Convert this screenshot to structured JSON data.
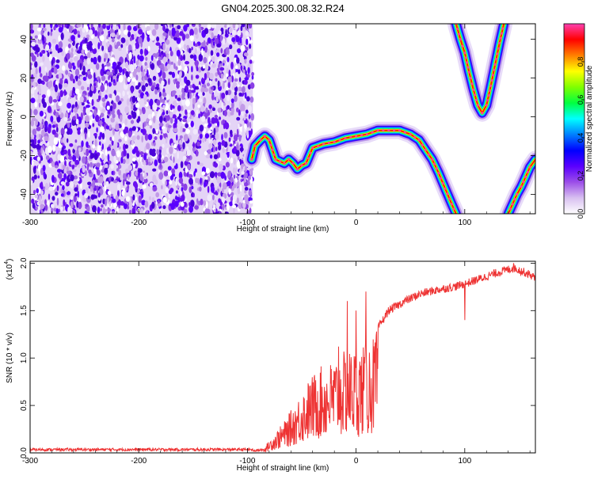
{
  "title": "GN04.2025.300.08.32.R24",
  "chart_data": [
    {
      "type": "heatmap",
      "title": "GN04.2025.300.08.32.R24",
      "xlabel": "Height of straight line (km)",
      "ylabel": "Frequency (Hz)",
      "xlim": [
        -300,
        165
      ],
      "ylim": [
        -50,
        48
      ],
      "xticks": [
        -300,
        -200,
        -100,
        0,
        100
      ],
      "xtick_labels": [
        "-300",
        "-200",
        "-100",
        "0",
        "100"
      ],
      "yticks": [
        -40,
        -20,
        0,
        20,
        40
      ],
      "ytick_labels": [
        "-40",
        "-20",
        "0",
        "20",
        "40"
      ],
      "noise_region": {
        "x": [
          -300,
          -95
        ],
        "description": "random purple speckle"
      },
      "tracks": [
        {
          "name": "main-ridge",
          "points": [
            [
              -96,
              -22
            ],
            [
              -93,
              -15
            ],
            [
              -88,
              -12
            ],
            [
              -84,
              -10
            ],
            [
              -80,
              -12
            ],
            [
              -77,
              -17
            ],
            [
              -74,
              -22
            ],
            [
              -70,
              -23
            ],
            [
              -66,
              -24
            ],
            [
              -62,
              -22
            ],
            [
              -58,
              -24
            ],
            [
              -54,
              -27
            ],
            [
              -50,
              -25
            ],
            [
              -46,
              -24
            ],
            [
              -40,
              -16
            ],
            [
              -30,
              -14
            ],
            [
              -20,
              -13
            ],
            [
              -10,
              -11
            ],
            [
              0,
              -10
            ],
            [
              10,
              -9
            ],
            [
              20,
              -7
            ],
            [
              30,
              -7
            ],
            [
              40,
              -7
            ],
            [
              50,
              -9
            ],
            [
              58,
              -12
            ],
            [
              64,
              -17
            ],
            [
              70,
              -22
            ],
            [
              76,
              -29
            ],
            [
              82,
              -37
            ],
            [
              88,
              -45
            ],
            [
              92,
              -50
            ]
          ]
        },
        {
          "name": "upper-vee",
          "points": [
            [
              92,
              48
            ],
            [
              96,
              40
            ],
            [
              100,
              33
            ],
            [
              104,
              23
            ],
            [
              108,
              14
            ],
            [
              112,
              6
            ],
            [
              116,
              2
            ],
            [
              120,
              6
            ],
            [
              124,
              16
            ],
            [
              128,
              27
            ],
            [
              132,
              38
            ],
            [
              136,
              48
            ]
          ]
        },
        {
          "name": "lower-right",
          "points": [
            [
              140,
              -50
            ],
            [
              144,
              -45
            ],
            [
              148,
              -40
            ],
            [
              152,
              -36
            ],
            [
              156,
              -31
            ],
            [
              160,
              -26
            ],
            [
              165,
              -22
            ]
          ]
        }
      ],
      "colorbar": {
        "label": "Normalized spectral amplitude",
        "range": [
          0.0,
          1.0
        ],
        "ticks": [
          0.0,
          0.2,
          0.4,
          0.6,
          0.8
        ],
        "tick_labels": [
          "0.0",
          "0.2",
          "0.4",
          "0.6",
          "0.8"
        ],
        "colors": [
          "#ffffff",
          "#d8c0f0",
          "#9b4de8",
          "#5a00ff",
          "#0000ff",
          "#0080ff",
          "#00ffff",
          "#00ff40",
          "#80ff00",
          "#ffff00",
          "#ff8000",
          "#ff0000",
          "#ff40b0"
        ]
      }
    },
    {
      "type": "line",
      "xlabel": "Height of straight line (km)",
      "ylabel": "SNR (10 * v/v)",
      "scale_label": "(x10",
      "scale_exponent": "4",
      "xlim": [
        -300,
        165
      ],
      "ylim": [
        0,
        2.02
      ],
      "xticks": [
        -300,
        -200,
        -100,
        0,
        100
      ],
      "xtick_labels": [
        "-300",
        "-200",
        "-100",
        "0",
        "100"
      ],
      "yticks": [
        0.0,
        0.5,
        1.0,
        1.5,
        2.0
      ],
      "ytick_labels": [
        "0.0",
        "0.5",
        "1.0",
        "1.5",
        "2.0"
      ],
      "color": "#ee3333",
      "series": [
        {
          "name": "SNR",
          "envelope": [
            [
              -300,
              0.03
            ],
            [
              -95,
              0.03
            ],
            [
              -85,
              0.05
            ],
            [
              -74,
              0.22
            ],
            [
              -65,
              0.35
            ],
            [
              -55,
              0.55
            ],
            [
              -45,
              0.75
            ],
            [
              -35,
              0.9
            ],
            [
              -25,
              0.95
            ],
            [
              -15,
              1.05
            ],
            [
              -5,
              1.1
            ],
            [
              5,
              1.12
            ],
            [
              15,
              1.22
            ],
            [
              22,
              1.35
            ],
            [
              30,
              1.5
            ],
            [
              45,
              1.6
            ],
            [
              60,
              1.68
            ],
            [
              75,
              1.72
            ],
            [
              90,
              1.75
            ],
            [
              100,
              1.78
            ],
            [
              115,
              1.84
            ],
            [
              130,
              1.9
            ],
            [
              145,
              1.95
            ],
            [
              160,
              1.88
            ],
            [
              165,
              1.84
            ]
          ],
          "spikes": [
            [
              -16,
              1.12
            ],
            [
              -8,
              1.6
            ],
            [
              0,
              1.5
            ],
            [
              9,
              1.7
            ],
            [
              11,
              0.3
            ],
            [
              100,
              1.4
            ],
            [
              145,
              2.0
            ]
          ]
        }
      ]
    }
  ]
}
